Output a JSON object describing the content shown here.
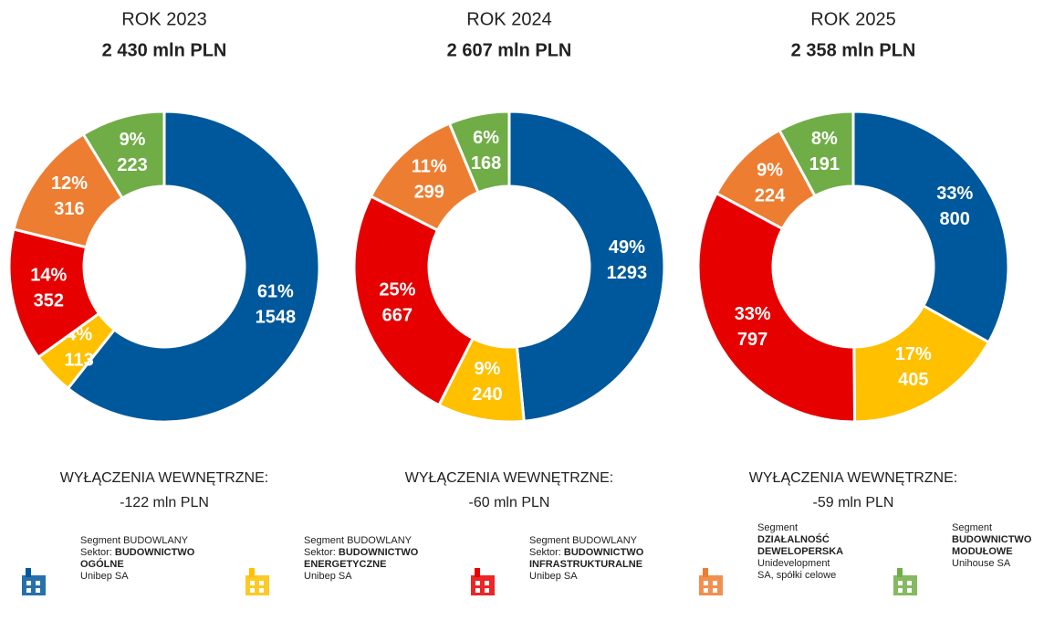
{
  "chart_data": [
    {
      "type": "pie",
      "donut": true,
      "title": "ROK 2023",
      "subtitle": "2 430 mln PLN",
      "values": [
        1548,
        113,
        352,
        316,
        223
      ],
      "share_labels": [
        "61%",
        "4%",
        "14%",
        "12%",
        "9%"
      ],
      "exclusion_label": "WYŁĄCZENIA WEWNĘTRZNE:",
      "exclusion": "-122 mln PLN"
    },
    {
      "type": "pie",
      "donut": true,
      "title": "ROK 2024",
      "subtitle": "2 607 mln PLN",
      "values": [
        1293,
        240,
        667,
        299,
        168
      ],
      "share_labels": [
        "49%",
        "9%",
        "25%",
        "11%",
        "6%"
      ],
      "exclusion_label": "WYŁĄCZENIA WEWNĘTRZNE:",
      "exclusion": "-60 mln PLN"
    },
    {
      "type": "pie",
      "donut": true,
      "title": "ROK 2025",
      "subtitle": "2 358 mln PLN",
      "values": [
        800,
        405,
        797,
        224,
        191
      ],
      "share_labels": [
        "33%",
        "17%",
        "33%",
        "9%",
        "8%"
      ],
      "exclusion_label": "WYŁĄCZENIA WEWNĘTRZNE:",
      "exclusion": "-59 mln PLN"
    }
  ],
  "segments": [
    {
      "color": "#00589c",
      "lines": [
        [
          {
            "text": "Segment BUDOWLANY"
          }
        ],
        [
          {
            "text": "Sektor: "
          },
          {
            "text": "BUDOWNICTWO OGÓLNE",
            "bold": true
          }
        ],
        [
          {
            "text": "Unibep SA"
          }
        ]
      ]
    },
    {
      "color": "#ffc000",
      "lines": [
        [
          {
            "text": "Segment BUDOWLANY"
          }
        ],
        [
          {
            "text": "Sektor: "
          },
          {
            "text": "BUDOWNICTWO ENERGETYCZNE",
            "bold": true
          }
        ],
        [
          {
            "text": "Unibep SA"
          }
        ]
      ]
    },
    {
      "color": "#e60000",
      "lines": [
        [
          {
            "text": "Segment BUDOWLANY"
          }
        ],
        [
          {
            "text": "Sektor: "
          },
          {
            "text": "BUDOWNICTWO INFRASTRUKTURALNE",
            "bold": true
          }
        ],
        [
          {
            "text": "Unibep SA"
          }
        ]
      ]
    },
    {
      "color": "#ed7d31",
      "lines": [
        [
          {
            "text": "Segment"
          }
        ],
        [
          {
            "text": "DZIAŁALNOŚĆ DEWELOPERSKA",
            "bold": true
          }
        ],
        [
          {
            "text": "Unidevelopment SA, spółki celowe"
          }
        ]
      ]
    },
    {
      "color": "#70ad47",
      "lines": [
        [
          {
            "text": "Segment"
          }
        ],
        [
          {
            "text": "BUDOWNICTWO MODUŁOWE",
            "bold": true
          }
        ],
        [
          {
            "text": "Unihouse SA"
          }
        ]
      ]
    }
  ]
}
